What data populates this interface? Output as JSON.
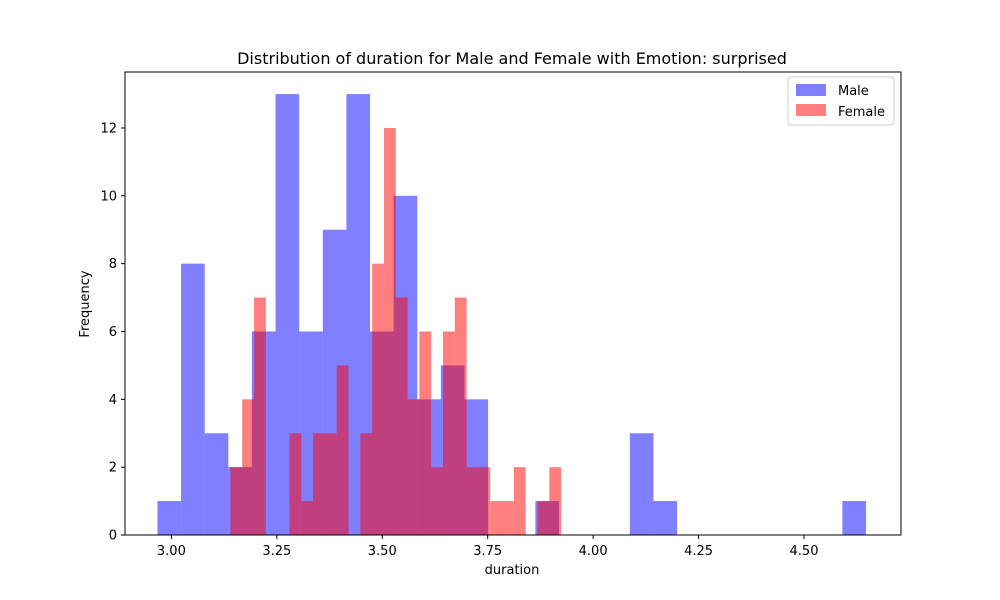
{
  "chart_data": {
    "type": "histogram",
    "title": "Distribution of duration for Male and Female with Emotion: surprised",
    "xlabel": "duration",
    "ylabel": "Frequency",
    "xlim": [
      2.89,
      4.73
    ],
    "ylim": [
      0,
      13.65
    ],
    "xticks": [
      3.0,
      3.25,
      3.5,
      3.75,
      4.0,
      4.25,
      4.5
    ],
    "xtick_labels": [
      "3.00",
      "3.25",
      "3.50",
      "3.75",
      "4.00",
      "4.25",
      "4.50"
    ],
    "yticks": [
      0,
      2,
      4,
      6,
      8,
      10,
      12
    ],
    "ytick_labels": [
      "0",
      "2",
      "4",
      "6",
      "8",
      "10",
      "12"
    ],
    "grid": false,
    "legend_position": "top-right",
    "series": [
      {
        "name": "Male",
        "color": "#0000ff",
        "opacity": 0.5,
        "bin_edges": [
          2.967,
          3.023,
          3.079,
          3.135,
          3.191,
          3.247,
          3.303,
          3.359,
          3.415,
          3.471,
          3.527,
          3.583,
          3.639,
          3.695,
          3.751,
          3.807,
          3.863,
          3.919,
          3.975,
          4.031,
          4.087,
          4.143,
          4.199,
          4.255,
          4.311,
          4.367,
          4.423,
          4.479,
          4.535,
          4.591,
          4.647
        ],
        "counts": [
          1,
          8,
          3,
          2,
          6,
          13,
          6,
          9,
          13,
          6,
          10,
          4,
          5,
          4,
          0,
          0,
          1,
          0,
          0,
          0,
          3,
          1,
          0,
          0,
          0,
          0,
          0,
          0,
          0,
          1
        ]
      },
      {
        "name": "Female",
        "color": "#ff0000",
        "opacity": 0.5,
        "bin_edges": [
          3.14,
          3.168,
          3.196,
          3.224,
          3.252,
          3.28,
          3.308,
          3.336,
          3.364,
          3.392,
          3.42,
          3.448,
          3.476,
          3.504,
          3.532,
          3.56,
          3.588,
          3.616,
          3.644,
          3.672,
          3.7,
          3.728,
          3.756,
          3.784,
          3.812,
          3.84,
          3.868,
          3.896,
          3.924,
          3.952,
          3.98
        ],
        "counts": [
          2,
          4,
          7,
          0,
          0,
          3,
          1,
          3,
          3,
          5,
          0,
          3,
          8,
          12,
          7,
          4,
          6,
          2,
          6,
          7,
          2,
          2,
          1,
          1,
          2,
          0,
          1,
          2,
          0,
          0
        ]
      }
    ]
  }
}
